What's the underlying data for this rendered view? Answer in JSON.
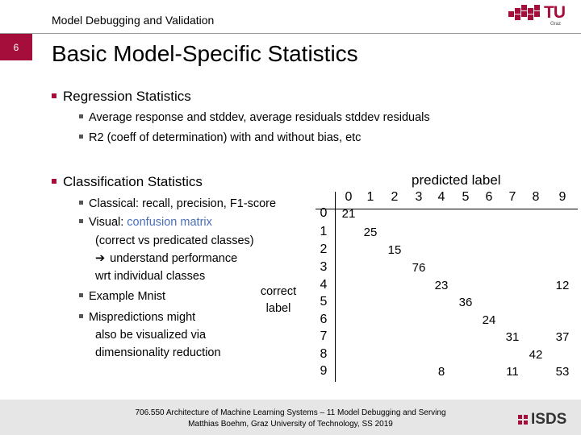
{
  "header": {
    "section_title": "Model Debugging and Validation",
    "slide_number": "6",
    "logo_text": "TU",
    "logo_subtext": "Graz"
  },
  "slide": {
    "title": "Basic Model-Specific Statistics",
    "regression": {
      "heading": "Regression Statistics",
      "items": [
        "Average response and stddev, average residuals stddev residuals",
        "R2 (coeff of determination) with and without bias, etc"
      ]
    },
    "classification": {
      "heading": "Classification Statistics",
      "item1": "Classical: recall, precision, F1-score",
      "item2_prefix": "Visual: ",
      "item2_accent": "confusion matrix",
      "item2_line2": "(correct vs predicated classes)",
      "item2_line3": "understand performance",
      "item2_line4": "wrt individual classes",
      "item3": "Example Mnist",
      "item4_line1": "Mispredictions might",
      "item4_line2": "also be visualized via",
      "item4_line3": "dimensionality reduction"
    },
    "matrix": {
      "header_label": "predicted label",
      "side_label_line1": "correct",
      "side_label_line2": "label",
      "columns": [
        "0",
        "1",
        "2",
        "3",
        "4",
        "5",
        "6",
        "7",
        "8",
        "9"
      ],
      "rows": [
        "0",
        "1",
        "2",
        "3",
        "4",
        "5",
        "6",
        "7",
        "8",
        "9"
      ],
      "values": [
        {
          "row": "0",
          "col": "0",
          "value": "21"
        },
        {
          "row": "1",
          "col": "1",
          "value": "25"
        },
        {
          "row": "2",
          "col": "2",
          "value": "15"
        },
        {
          "row": "3",
          "col": "3",
          "value": "76"
        },
        {
          "row": "4",
          "col": "4",
          "value": "23"
        },
        {
          "row": "4",
          "col": "9",
          "value": "12"
        },
        {
          "row": "5",
          "col": "5",
          "value": "36"
        },
        {
          "row": "6",
          "col": "6",
          "value": "24"
        },
        {
          "row": "7",
          "col": "7",
          "value": "31"
        },
        {
          "row": "7",
          "col": "9",
          "value": "37"
        },
        {
          "row": "8",
          "col": "8",
          "value": "42"
        },
        {
          "row": "9",
          "col": "4",
          "value": "8"
        },
        {
          "row": "9",
          "col": "7",
          "value": "11"
        },
        {
          "row": "9",
          "col": "9",
          "value": "53"
        }
      ]
    }
  },
  "footer": {
    "line1": "706.550 Architecture of Machine Learning Systems – 11 Model Debugging and Serving",
    "line2": "Matthias Boehm, Graz University of Technology, SS 2019",
    "logo_text": "ISDS"
  }
}
